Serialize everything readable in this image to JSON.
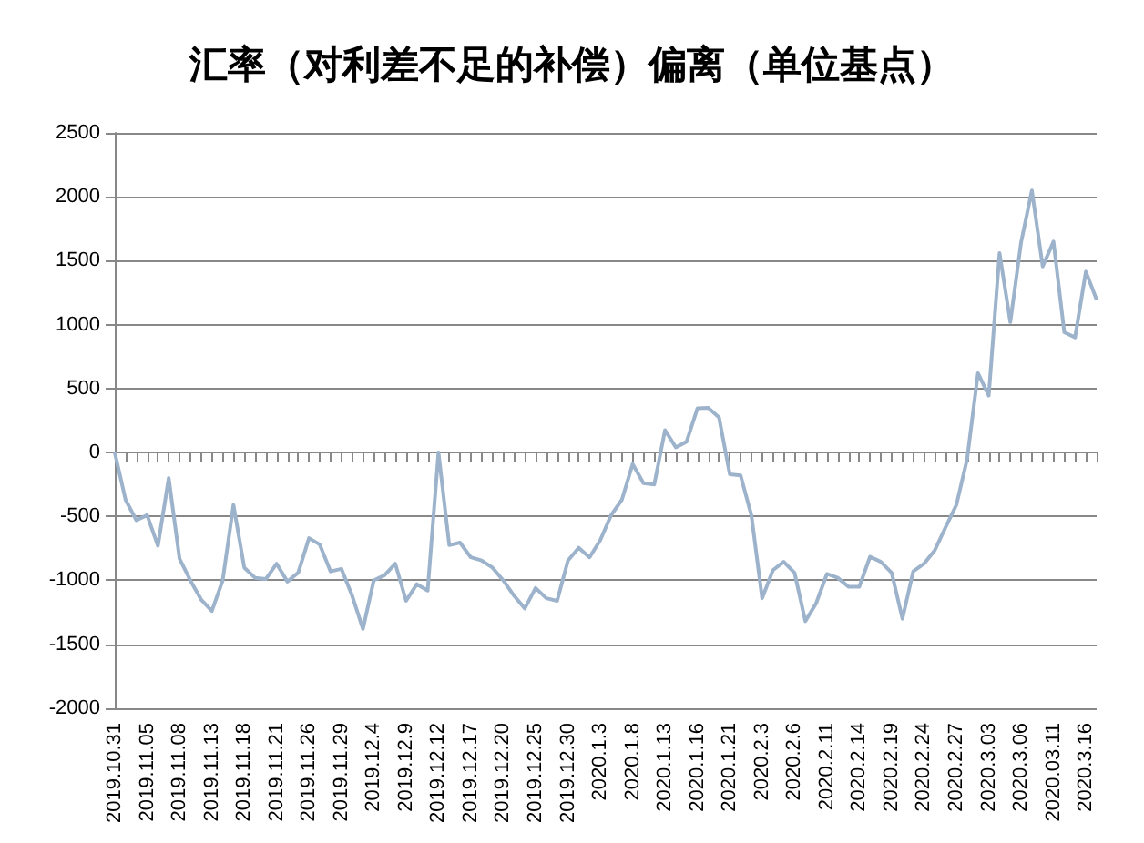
{
  "chart_data": {
    "type": "line",
    "title": "汇率（对利差不足的补偿）偏离（单位基点）",
    "categories": [
      "2019.10.31",
      null,
      null,
      "2019.11.05",
      null,
      null,
      "2019.11.08",
      null,
      null,
      "2019.11.13",
      null,
      null,
      "2019.11.18",
      null,
      null,
      "2019.11.21",
      null,
      null,
      "2019.11.26",
      null,
      null,
      "2019.11.29",
      null,
      null,
      "2019.12.4",
      null,
      null,
      "2019.12.9",
      null,
      null,
      "2019.12.12",
      null,
      null,
      "2019.12.17",
      null,
      null,
      "2019.12.20",
      null,
      null,
      "2019.12.25",
      null,
      null,
      "2019.12.30",
      null,
      null,
      "2020.1.3",
      null,
      null,
      "2020.1.8",
      null,
      null,
      "2020.1.13",
      null,
      null,
      "2020.1.16",
      null,
      null,
      "2020.1.21",
      null,
      null,
      "2020.2.3",
      null,
      null,
      "2020.2.6",
      null,
      null,
      "2020.2.11",
      null,
      null,
      "2020.2.14",
      null,
      null,
      "2020.2.19",
      null,
      null,
      "2020.2.24",
      null,
      null,
      "2020.2.27",
      null,
      null,
      "2020.3.03",
      null,
      null,
      "2020.3.06",
      null,
      null,
      "2020.03.11",
      null,
      null,
      "2020.3.16",
      null
    ],
    "values": [
      0,
      -370,
      -530,
      -490,
      -730,
      -200,
      -830,
      -1000,
      -1150,
      -1240,
      -1000,
      -410,
      -900,
      -980,
      -990,
      -870,
      -1010,
      -940,
      -670,
      -720,
      -930,
      -910,
      -1120,
      -1380,
      -1000,
      -960,
      -870,
      -1160,
      -1030,
      -1080,
      0,
      -725,
      -705,
      -820,
      -845,
      -900,
      -1000,
      -1120,
      -1220,
      -1060,
      -1140,
      -1160,
      -845,
      -745,
      -820,
      -685,
      -490,
      -370,
      -90,
      -240,
      -250,
      175,
      40,
      85,
      345,
      350,
      275,
      -170,
      -180,
      -490,
      -1140,
      -920,
      -855,
      -940,
      -1320,
      -1180,
      -950,
      -980,
      -1050,
      -1050,
      -815,
      -855,
      -940,
      -1300,
      -930,
      -870,
      -765,
      -585,
      -410,
      -50,
      620,
      445,
      1560,
      1020,
      1645,
      2050,
      1455,
      1650,
      940,
      900,
      1415,
      1195
    ],
    "color": "#9db3cc",
    "ylim": [
      -2000,
      2500
    ],
    "yticks": [
      -2000,
      -1500,
      -1000,
      -500,
      0,
      500,
      1000,
      1500,
      2000,
      2500
    ],
    "grid": "y",
    "marker": "none",
    "line_style": "solid"
  }
}
